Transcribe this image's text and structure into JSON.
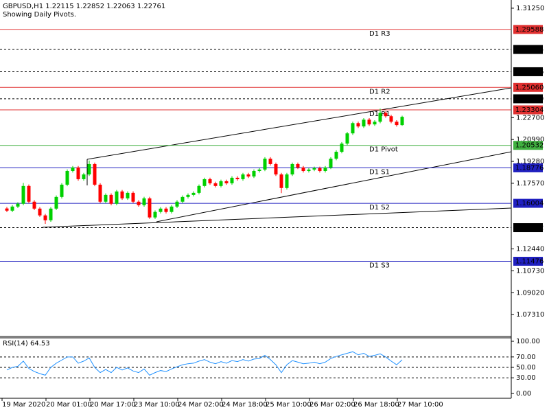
{
  "chart_data": {
    "type": "candlestick",
    "title": "GBPUSD,H1  1.22115 1.22852 1.22063 1.22761",
    "subtitle": "Showing Daily Pivots.",
    "time_labels": [
      "19 Mar 2020",
      "20 Mar 01:00",
      "20 Mar 17:00",
      "23 Mar 10:00",
      "24 Mar 02:00",
      "24 Mar 18:00",
      "25 Mar 10:00",
      "26 Mar 02:00",
      "26 Mar 18:00",
      "27 Mar 10:00"
    ],
    "open": [
      1.156,
      1.1543,
      1.1575,
      1.1597,
      1.1736,
      1.1613,
      1.1559,
      1.1506,
      1.1468,
      1.1559,
      1.165,
      1.1746,
      1.1853,
      1.188,
      1.1789,
      1.1826,
      1.1907,
      1.1746,
      1.1613,
      1.1666,
      1.1597,
      1.1693,
      1.1639,
      1.1682,
      1.1613,
      1.1586,
      1.1639,
      1.149,
      1.1533,
      1.1559,
      1.1533,
      1.1575,
      1.1613,
      1.165,
      1.1666,
      1.1682,
      1.1736,
      1.1789,
      1.1757,
      1.1736,
      1.1773,
      1.1757,
      1.18,
      1.1789,
      1.1826,
      1.181,
      1.1853,
      1.1864,
      1.1949,
      1.1907,
      1.1826,
      1.172,
      1.1826,
      1.1907,
      1.188,
      1.1853,
      1.1864,
      1.1875,
      1.1853,
      1.188,
      1.1949,
      1.2003,
      1.2067,
      1.2147,
      1.2227,
      1.2201,
      1.2254,
      1.2217,
      1.2238,
      1.2307,
      1.2281,
      1.2238,
      1.2212
    ],
    "high": [
      1.1572,
      1.1587,
      1.1609,
      1.176,
      1.1748,
      1.1625,
      1.1571,
      1.1518,
      1.1571,
      1.1662,
      1.1758,
      1.1865,
      1.1892,
      1.1892,
      1.1838,
      1.1935,
      1.1919,
      1.1758,
      1.1678,
      1.1678,
      1.1705,
      1.1705,
      1.1694,
      1.1694,
      1.1625,
      1.1651,
      1.1651,
      1.1545,
      1.1571,
      1.1571,
      1.1587,
      1.1625,
      1.1662,
      1.1678,
      1.1694,
      1.1748,
      1.1801,
      1.1801,
      1.1769,
      1.1785,
      1.1785,
      1.1812,
      1.1812,
      1.1838,
      1.1838,
      1.1865,
      1.1876,
      1.1961,
      1.1961,
      1.1919,
      1.1838,
      1.1838,
      1.1919,
      1.1919,
      1.1892,
      1.1876,
      1.1887,
      1.1887,
      1.1892,
      1.1961,
      1.2015,
      1.2079,
      1.2159,
      1.2239,
      1.2239,
      1.2266,
      1.2266,
      1.225,
      1.234,
      1.2319,
      1.2293,
      1.225,
      1.2285
    ],
    "low": [
      1.1531,
      1.1531,
      1.1563,
      1.1585,
      1.1601,
      1.1547,
      1.1494,
      1.144,
      1.1456,
      1.1547,
      1.1638,
      1.1734,
      1.1841,
      1.1777,
      1.1777,
      1.1814,
      1.1734,
      1.1601,
      1.1601,
      1.1585,
      1.1585,
      1.1627,
      1.1627,
      1.1601,
      1.1574,
      1.1574,
      1.1478,
      1.1478,
      1.1521,
      1.1521,
      1.1521,
      1.1563,
      1.1601,
      1.1638,
      1.1654,
      1.167,
      1.1724,
      1.1745,
      1.1724,
      1.1724,
      1.1745,
      1.1745,
      1.1777,
      1.1777,
      1.1798,
      1.1798,
      1.1841,
      1.1852,
      1.1895,
      1.1814,
      1.168,
      1.1708,
      1.1814,
      1.1868,
      1.1841,
      1.1841,
      1.1852,
      1.1841,
      1.1841,
      1.1868,
      1.1937,
      1.1991,
      1.2055,
      1.2135,
      1.2189,
      1.2189,
      1.2205,
      1.2205,
      1.2226,
      1.2269,
      1.2226,
      1.22,
      1.2206
    ],
    "close": [
      1.1543,
      1.1575,
      1.1597,
      1.1736,
      1.1613,
      1.1559,
      1.1506,
      1.1468,
      1.1559,
      1.165,
      1.1746,
      1.1853,
      1.188,
      1.1789,
      1.1826,
      1.1907,
      1.1746,
      1.1613,
      1.1666,
      1.1597,
      1.1693,
      1.1639,
      1.1682,
      1.1613,
      1.1586,
      1.1639,
      1.149,
      1.1533,
      1.1559,
      1.1533,
      1.1575,
      1.1613,
      1.165,
      1.1666,
      1.1682,
      1.1736,
      1.1789,
      1.1757,
      1.1736,
      1.1773,
      1.1757,
      1.18,
      1.1789,
      1.1826,
      1.181,
      1.1853,
      1.1864,
      1.1949,
      1.1907,
      1.1826,
      1.172,
      1.1826,
      1.1907,
      1.188,
      1.1853,
      1.1864,
      1.1875,
      1.1853,
      1.188,
      1.1949,
      1.2003,
      1.2067,
      1.2147,
      1.2227,
      1.2201,
      1.2254,
      1.2217,
      1.2238,
      1.2307,
      1.2281,
      1.2238,
      1.2212,
      1.2276
    ],
    "up_color": "#00d000",
    "down_color": "#ff0000",
    "ylim": [
      1.056,
      1.3189
    ],
    "yticks": [
      {
        "value": 1.3125,
        "label": "1.31250"
      },
      {
        "value": 1.227,
        "label": "1.22700"
      },
      {
        "value": 1.2099,
        "label": "1.20990"
      },
      {
        "value": 1.1928,
        "label": "1.19280"
      },
      {
        "value": 1.1757,
        "label": "1.17570"
      },
      {
        "value": 1.1244,
        "label": "1.12440"
      },
      {
        "value": 1.1073,
        "label": "1.10730"
      },
      {
        "value": 1.0902,
        "label": "1.09020"
      },
      {
        "value": 1.0731,
        "label": "1.07310"
      }
    ],
    "levels": [
      {
        "name": "D1 R3",
        "value": 1.29588,
        "color": "#e03030"
      },
      {
        "value": 1.28024,
        "color": "#000000",
        "style": "dashed"
      },
      {
        "value": 1.26286,
        "color": "#000000",
        "style": "dashed"
      },
      {
        "name": "D1 R2",
        "value": {
          "value": 1.2506,
          "label": "1.25060"
        },
        "color": "#e03030"
      },
      {
        "value": 1.24169,
        "color": "#000000",
        "style": "dashed"
      },
      {
        "name": "D1 R1",
        "value": 1.23304,
        "color": "#e03030"
      },
      {
        "name": "D1 Pivot",
        "value": 1.20532,
        "color": "#40b040"
      },
      {
        "name": "D1 S1",
        "value": 1.18776,
        "color": "#2020c0"
      },
      {
        "name": "D1 S2",
        "value": 1.16004,
        "color": "#2020c0"
      },
      {
        "value": 1.14102,
        "color": "#000000",
        "style": "dashed"
      },
      {
        "name": "D1 S3",
        "value": 1.11476,
        "color": "#2020c0"
      }
    ],
    "rsi": {
      "title": "RSI(14) 64.53",
      "color": "#1e90ff",
      "ylim": [
        -9.2,
        106.6
      ],
      "yticks": [
        {
          "value": 100,
          "label": "100.00"
        },
        {
          "value": 70,
          "label": "70.00"
        },
        {
          "value": 50,
          "label": "50.00"
        },
        {
          "value": 30,
          "label": "30.00"
        },
        {
          "value": 0,
          "label": "0.00"
        }
      ],
      "levels": [
        70,
        50,
        30
      ],
      "values": [
        45,
        50,
        52,
        62,
        48,
        42,
        38,
        35,
        50,
        58,
        64,
        70,
        70,
        58,
        62,
        68,
        50,
        40,
        46,
        40,
        50,
        45,
        49,
        43,
        40,
        47,
        35,
        40,
        44,
        42,
        47,
        51,
        55,
        57,
        58,
        62,
        65,
        60,
        57,
        61,
        58,
        63,
        61,
        65,
        62,
        66,
        67,
        73,
        65,
        55,
        40,
        55,
        63,
        60,
        57,
        58,
        60,
        57,
        60,
        67,
        71,
        74,
        77,
        80,
        74,
        77,
        71,
        73,
        76,
        70,
        62,
        55,
        64.53
      ]
    }
  }
}
